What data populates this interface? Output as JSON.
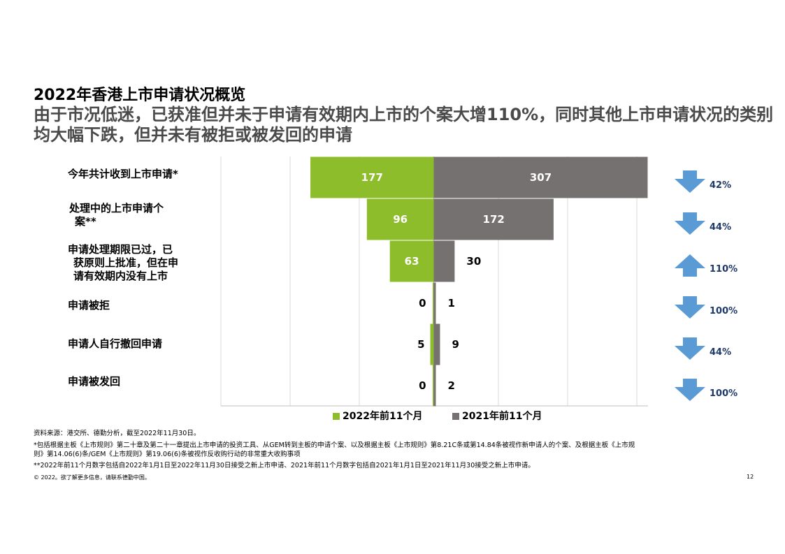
{
  "title": "2022年香港上市申请状况概览",
  "subtitle": "由于市况低迷，已获准但并未于申请有效期内上市的个案大增110%，同时其他上市申请状况的类别均大幅下跌，但并未有被拒或被发回的申请",
  "colors": {
    "series_2022": "#8dbd2b",
    "series_2021": "#767171",
    "arrow": "#5b9bd5",
    "pct_text": "#1f3a68",
    "grid": "#d9d9d9"
  },
  "chart_data": {
    "type": "bar",
    "orientation": "horizontal-butterfly",
    "categories": [
      "今年共计收到上市申请*",
      "处理中的上市申请个案**",
      "申请处理期限已过，已获原则上批准，但在申请有效期内没有上市",
      "申请被拒",
      "申请人自行撤回申请",
      "申请被发回"
    ],
    "category_lines": [
      [
        "今年共计收到上市申请*"
      ],
      [
        "处理中的上市申请个",
        "案**"
      ],
      [
        "申请处理期限已过，已",
        "获原则上批准，但在申",
        "请有效期内没有上市"
      ],
      [
        "申请被拒"
      ],
      [
        "申请人自行撤回申请"
      ],
      [
        "申请被发回"
      ]
    ],
    "series": [
      {
        "name": "2022年前11个月",
        "values": [
          177,
          96,
          63,
          0,
          5,
          0
        ]
      },
      {
        "name": "2021年前11个月",
        "values": [
          307,
          172,
          30,
          1,
          9,
          2
        ]
      }
    ],
    "changes": [
      {
        "direction": "down",
        "label": "42%"
      },
      {
        "direction": "down",
        "label": "44%"
      },
      {
        "direction": "up",
        "label": "110%"
      },
      {
        "direction": "down",
        "label": "100%"
      },
      {
        "direction": "down",
        "label": "44%"
      },
      {
        "direction": "down",
        "label": "100%"
      }
    ],
    "grid": true,
    "legend_position": "bottom"
  },
  "notes": {
    "source": "资料来源：港交所、德勤分析，截至2022年11月30日。",
    "note1_line1": "*包括根据主板《上市规则》第二十章及第二十一章提出上市申请的投资工具、从GEM转到主板的申请个案、以及根据主板《上市规则》第8.21C条或第14.84条被视作新申请人的个案、及根据主板《上市规",
    "note1_line2": "则》第14.06(6)条/GEM《上市规则》第19.06(6)条被视作反收购行动的非常重大收购事项",
    "note2": "**2022年前11个月数字包括自2022年1月1日至2022年11月30日接受之新上市申请、2021年前11个月数字包括自2021年1月1日至2021年11月30接受之新上市申请。",
    "copyright": "© 2022。欲了解更多信息，请联系德勤中国。",
    "page_number": "12"
  }
}
